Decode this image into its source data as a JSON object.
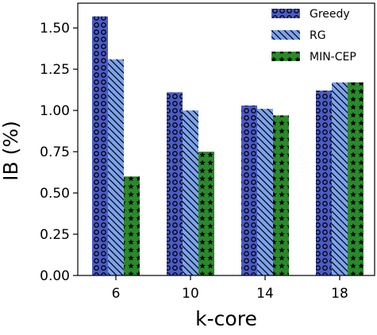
{
  "chart_data": {
    "type": "bar",
    "xlabel": "k-core",
    "ylabel": "IB (%)",
    "categories": [
      "6",
      "10",
      "14",
      "18"
    ],
    "ylim": [
      0,
      1.65
    ],
    "yticks": [
      0.0,
      0.25,
      0.5,
      0.75,
      1.0,
      1.25,
      1.5
    ],
    "ytick_labels": [
      "0.00",
      "0.25",
      "0.50",
      "0.75",
      "1.00",
      "1.25",
      "1.50"
    ],
    "grid": false,
    "legend_position": "top-right",
    "series": [
      {
        "name": "Greedy",
        "values": [
          1.57,
          1.11,
          1.03,
          1.12
        ],
        "color": "#4a5bc7",
        "pattern": "circles"
      },
      {
        "name": "RG",
        "values": [
          1.31,
          1.0,
          1.01,
          1.17
        ],
        "color": "#7ba3ee",
        "pattern": "diagonal"
      },
      {
        "name": "MIN-CEP",
        "values": [
          0.6,
          0.75,
          0.97,
          1.17
        ],
        "color": "#2a8a2a",
        "pattern": "stars"
      }
    ]
  }
}
